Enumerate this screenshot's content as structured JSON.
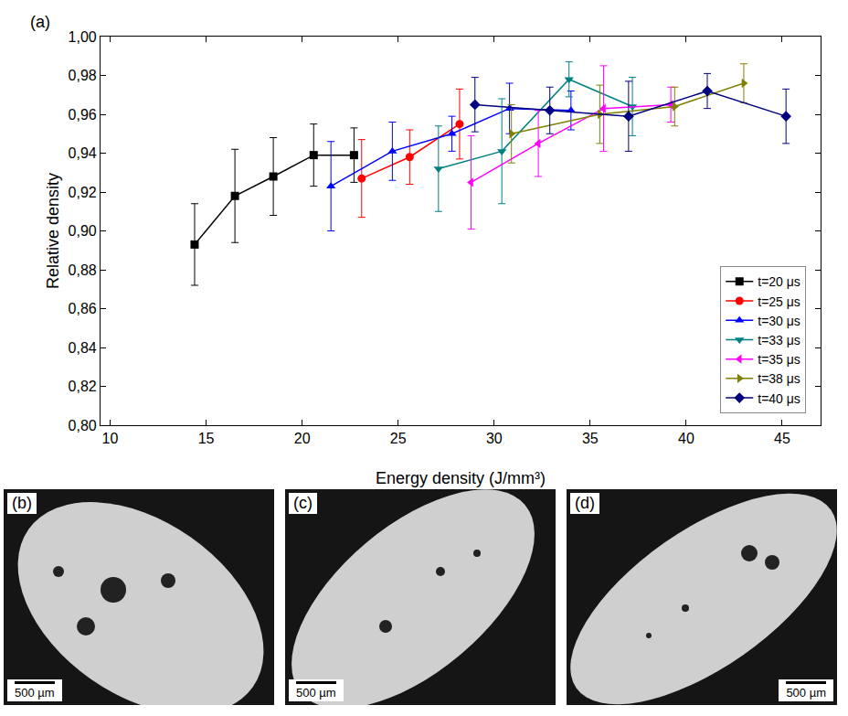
{
  "chart_data": {
    "type": "scatter",
    "panel_label": "(a)",
    "x_label": "Energy density (J/mm³)",
    "y_label": "Relative density",
    "xlim": [
      9.5,
      47
    ],
    "xticks": [
      10,
      15,
      20,
      25,
      30,
      35,
      40,
      45
    ],
    "ylim": [
      0.8,
      1.0
    ],
    "yticks": [
      {
        "value": 0.8,
        "label": "0,80"
      },
      {
        "value": 0.82,
        "label": "0,82"
      },
      {
        "value": 0.84,
        "label": "0,84"
      },
      {
        "value": 0.86,
        "label": "0,86"
      },
      {
        "value": 0.88,
        "label": "0,88"
      },
      {
        "value": 0.9,
        "label": "0,90"
      },
      {
        "value": 0.92,
        "label": "0,92"
      },
      {
        "value": 0.94,
        "label": "0,94"
      },
      {
        "value": 0.96,
        "label": "0,96"
      },
      {
        "value": 0.98,
        "label": "0,98"
      },
      {
        "value": 1.0,
        "label": "1,00"
      }
    ],
    "grid": false,
    "legend": "lower right",
    "series": [
      {
        "name": "t=20 μs",
        "color": "#000000",
        "marker": "square",
        "line_style": "solid",
        "x": [
          14.4,
          16.5,
          18.5,
          20.6,
          22.7
        ],
        "values": [
          0.893,
          0.918,
          0.928,
          0.939,
          0.939
        ],
        "errors": [
          0.021,
          0.024,
          0.02,
          0.016,
          0.014
        ]
      },
      {
        "name": "t=25 μs",
        "color": "#ff0000",
        "marker": "circle",
        "line_style": "solid",
        "x": [
          23.1,
          25.6,
          28.2
        ],
        "values": [
          0.927,
          0.938,
          0.955
        ],
        "errors": [
          0.02,
          0.014,
          0.018
        ]
      },
      {
        "name": "t=30 μs",
        "color": "#0000ff",
        "marker": "triangle-up",
        "line_style": "solid",
        "x": [
          21.5,
          24.7,
          27.8,
          30.8,
          34.0
        ],
        "values": [
          0.923,
          0.941,
          0.95,
          0.963,
          0.962
        ],
        "errors": [
          0.023,
          0.015,
          0.009,
          0.013,
          0.01
        ]
      },
      {
        "name": "t=33 μs",
        "color": "#008080",
        "marker": "triangle-down",
        "line_style": "solid",
        "x": [
          27.1,
          30.4,
          33.9,
          37.2
        ],
        "values": [
          0.932,
          0.941,
          0.978,
          0.964
        ],
        "errors": [
          0.022,
          0.027,
          0.009,
          0.015
        ]
      },
      {
        "name": "t=35 μs",
        "color": "#ff00ff",
        "marker": "triangle-left",
        "line_style": "solid",
        "x": [
          28.8,
          32.3,
          35.7,
          39.2
        ],
        "values": [
          0.925,
          0.945,
          0.963,
          0.965
        ],
        "errors": [
          0.024,
          0.017,
          0.022,
          0.009
        ]
      },
      {
        "name": "t=38 μs",
        "color": "#808000",
        "marker": "triangle-right",
        "line_style": "solid",
        "x": [
          30.9,
          35.5,
          39.4,
          43.0
        ],
        "values": [
          0.95,
          0.96,
          0.964,
          0.976
        ],
        "errors": [
          0.015,
          0.015,
          0.01,
          0.01
        ]
      },
      {
        "name": "t=40 μs",
        "color": "#000080",
        "marker": "diamond",
        "line_style": "solid",
        "x": [
          29.0,
          32.9,
          37.0,
          41.1,
          45.2
        ],
        "values": [
          0.965,
          0.962,
          0.959,
          0.972,
          0.959
        ],
        "errors": [
          0.014,
          0.012,
          0.018,
          0.009,
          0.014
        ]
      }
    ]
  },
  "micrographs": [
    {
      "label": "(b)",
      "scale_bar": "500 µm",
      "scale_side": "left"
    },
    {
      "label": "(c)",
      "scale_bar": "500 µm",
      "scale_side": "left"
    },
    {
      "label": "(d)",
      "scale_bar": "500 µm",
      "scale_side": "right"
    }
  ]
}
